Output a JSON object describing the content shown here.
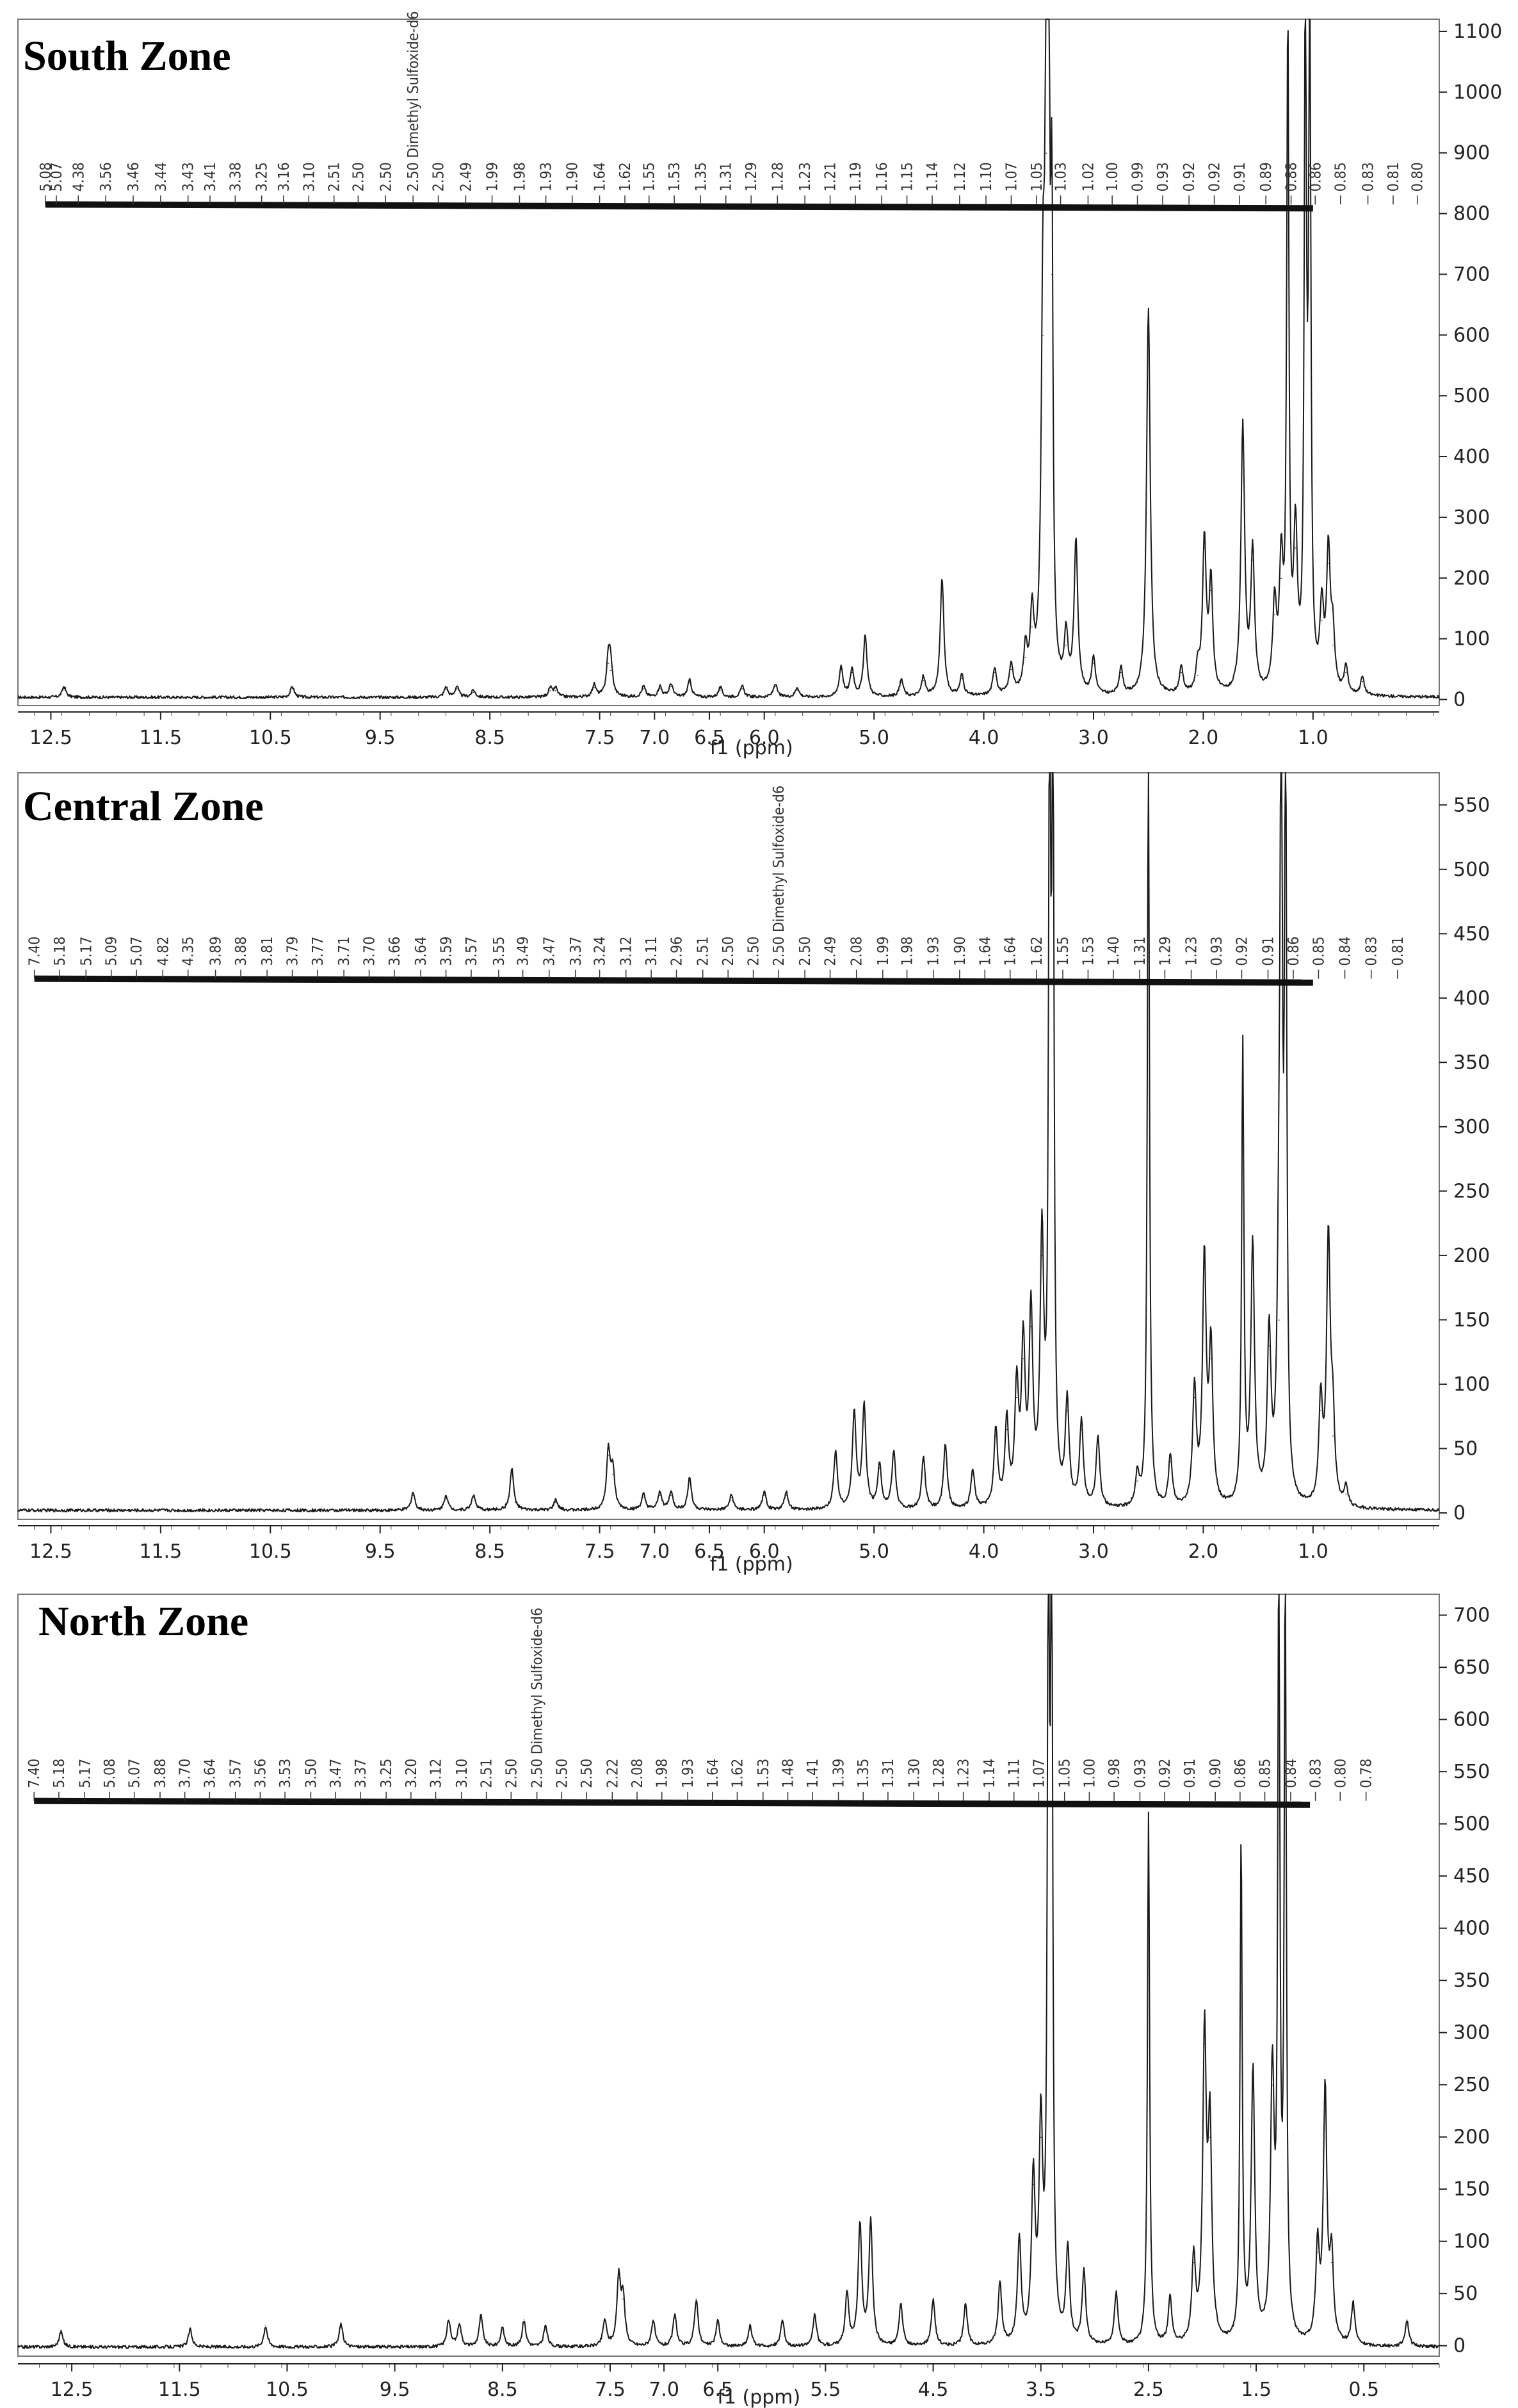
{
  "chart_data": [
    {
      "type": "line",
      "title": "South Zone",
      "xlabel": "f1 (ppm)",
      "ylabel": "",
      "x_axis_reversed": true,
      "xlim": [
        12.8,
        -0.15
      ],
      "ylim": [
        -10,
        1120
      ],
      "x_ticks": [
        "12.5",
        "11.5",
        "10.5",
        "9.5",
        "8.5",
        "7.5",
        "7.0",
        "6.5",
        "6.0",
        "5.0",
        "4.0",
        "3.0",
        "2.0",
        "1.0"
      ],
      "x_tick_values": [
        12.5,
        11.5,
        10.5,
        9.5,
        8.5,
        7.5,
        7.0,
        6.5,
        6.0,
        5.0,
        4.0,
        3.0,
        2.0,
        1.0
      ],
      "y_ticks": [
        0,
        100,
        200,
        300,
        400,
        500,
        600,
        700,
        800,
        900,
        1000,
        1100
      ],
      "integration_level": 815,
      "peak_labels": [
        "5.08",
        "5.07",
        "4.38",
        "3.56",
        "3.46",
        "3.44",
        "3.43",
        "3.41",
        "3.38",
        "3.25",
        "3.16",
        "3.10",
        "2.51",
        "2.50",
        "2.50",
        "2.50 Dimethyl Sulfoxide-d6",
        "2.50",
        "2.49",
        "1.99",
        "1.98",
        "1.93",
        "1.90",
        "1.64",
        "1.62",
        "1.55",
        "1.53",
        "1.35",
        "1.31",
        "1.29",
        "1.28",
        "1.23",
        "1.21",
        "1.19",
        "1.16",
        "1.15",
        "1.14",
        "1.12",
        "1.10",
        "1.07",
        "1.05",
        "1.03",
        "1.02",
        "1.00",
        "0.99",
        "0.93",
        "0.92",
        "0.92",
        "0.91",
        "0.89",
        "0.88",
        "0.86",
        "0.85",
        "0.83",
        "0.81",
        "0.80"
      ],
      "peak_label_positions_ppm": [
        12.55,
        12.45,
        12.25,
        12.0,
        11.75,
        11.5,
        11.25,
        11.05,
        10.82,
        10.58,
        10.38,
        10.15,
        9.92,
        9.7,
        9.45,
        9.2,
        8.97,
        8.72,
        8.48,
        8.23,
        7.99,
        7.75,
        7.5,
        7.27,
        7.05,
        6.82,
        6.58,
        6.35,
        6.12,
        5.88,
        5.63,
        5.4,
        5.17,
        4.93,
        4.7,
        4.47,
        4.22,
        3.98,
        3.75,
        3.52,
        3.3,
        3.05,
        2.83,
        2.6,
        2.37,
        2.13,
        1.9,
        1.67,
        1.43,
        1.2,
        0.98,
        0.75,
        0.5,
        0.27,
        0.05
      ],
      "series": [
        {
          "peaks": [
            {
              "x": 12.38,
              "y": 18
            },
            {
              "x": 10.3,
              "y": 18
            },
            {
              "x": 8.9,
              "y": 17
            },
            {
              "x": 8.8,
              "y": 18
            },
            {
              "x": 8.65,
              "y": 12
            },
            {
              "x": 7.95,
              "y": 15
            },
            {
              "x": 7.9,
              "y": 15
            },
            {
              "x": 7.55,
              "y": 20
            },
            {
              "x": 7.42,
              "y": 60
            },
            {
              "x": 7.4,
              "y": 48
            },
            {
              "x": 7.1,
              "y": 18
            },
            {
              "x": 6.95,
              "y": 18
            },
            {
              "x": 6.85,
              "y": 22
            },
            {
              "x": 6.68,
              "y": 28
            },
            {
              "x": 6.4,
              "y": 16
            },
            {
              "x": 6.2,
              "y": 18
            },
            {
              "x": 5.9,
              "y": 22
            },
            {
              "x": 5.7,
              "y": 16
            },
            {
              "x": 5.3,
              "y": 50
            },
            {
              "x": 5.2,
              "y": 45
            },
            {
              "x": 5.08,
              "y": 100
            },
            {
              "x": 4.75,
              "y": 28
            },
            {
              "x": 4.55,
              "y": 32
            },
            {
              "x": 4.38,
              "y": 195
            },
            {
              "x": 4.2,
              "y": 35
            },
            {
              "x": 3.9,
              "y": 45
            },
            {
              "x": 3.75,
              "y": 50
            },
            {
              "x": 3.62,
              "y": 70
            },
            {
              "x": 3.56,
              "y": 120
            },
            {
              "x": 3.46,
              "y": 600
            },
            {
              "x": 3.43,
              "y": 900
            },
            {
              "x": 3.41,
              "y": 1120
            },
            {
              "x": 3.38,
              "y": 700
            },
            {
              "x": 3.25,
              "y": 90
            },
            {
              "x": 3.16,
              "y": 250
            },
            {
              "x": 3.0,
              "y": 60
            },
            {
              "x": 2.75,
              "y": 45
            },
            {
              "x": 2.5,
              "y": 640
            },
            {
              "x": 2.2,
              "y": 45
            },
            {
              "x": 2.05,
              "y": 40
            },
            {
              "x": 1.99,
              "y": 250
            },
            {
              "x": 1.93,
              "y": 180
            },
            {
              "x": 1.64,
              "y": 440
            },
            {
              "x": 1.55,
              "y": 230
            },
            {
              "x": 1.35,
              "y": 140
            },
            {
              "x": 1.29,
              "y": 200
            },
            {
              "x": 1.23,
              "y": 1090
            },
            {
              "x": 1.16,
              "y": 250
            },
            {
              "x": 1.07,
              "y": 1120
            },
            {
              "x": 1.03,
              "y": 1120
            },
            {
              "x": 0.92,
              "y": 130
            },
            {
              "x": 0.86,
              "y": 225
            },
            {
              "x": 0.82,
              "y": 90
            },
            {
              "x": 0.7,
              "y": 45
            },
            {
              "x": 0.55,
              "y": 30
            }
          ]
        }
      ]
    },
    {
      "type": "line",
      "title": "Central Zone",
      "xlabel": "f1 (ppm)",
      "ylabel": "",
      "x_axis_reversed": true,
      "xlim": [
        12.8,
        -0.15
      ],
      "ylim": [
        -5,
        575
      ],
      "x_ticks": [
        "12.5",
        "11.5",
        "10.5",
        "9.5",
        "8.5",
        "7.5",
        "7.0",
        "6.5",
        "6.0",
        "5.0",
        "4.0",
        "3.0",
        "2.0",
        "1.0"
      ],
      "x_tick_values": [
        12.5,
        11.5,
        10.5,
        9.5,
        8.5,
        7.5,
        7.0,
        6.5,
        6.0,
        5.0,
        4.0,
        3.0,
        2.0,
        1.0
      ],
      "y_ticks": [
        0,
        50,
        100,
        150,
        200,
        250,
        300,
        350,
        400,
        450,
        500,
        550
      ],
      "integration_level": 415,
      "peak_labels": [
        "7.40",
        "5.18",
        "5.17",
        "5.09",
        "5.07",
        "4.82",
        "4.35",
        "3.89",
        "3.88",
        "3.81",
        "3.79",
        "3.77",
        "3.71",
        "3.70",
        "3.66",
        "3.64",
        "3.59",
        "3.57",
        "3.55",
        "3.49",
        "3.47",
        "3.37",
        "3.24",
        "3.12",
        "3.11",
        "2.96",
        "2.51",
        "2.50",
        "2.50",
        "2.50 Dimethyl Sulfoxide-d6",
        "2.50",
        "2.49",
        "2.08",
        "1.99",
        "1.98",
        "1.93",
        "1.90",
        "1.64",
        "1.64",
        "1.62",
        "1.55",
        "1.53",
        "1.40",
        "1.31",
        "1.29",
        "1.23",
        "0.93",
        "0.92",
        "0.91",
        "0.86",
        "0.85",
        "0.84",
        "0.83",
        "0.81"
      ],
      "peak_label_positions_ppm": [
        12.65,
        12.42,
        12.18,
        11.95,
        11.72,
        11.48,
        11.25,
        11.0,
        10.77,
        10.53,
        10.3,
        10.07,
        9.83,
        9.6,
        9.37,
        9.13,
        8.9,
        8.67,
        8.42,
        8.2,
        7.96,
        7.72,
        7.5,
        7.26,
        7.03,
        6.8,
        6.56,
        6.33,
        6.1,
        5.87,
        5.63,
        5.4,
        5.16,
        4.92,
        4.7,
        4.46,
        4.22,
        3.99,
        3.76,
        3.52,
        3.28,
        3.05,
        2.82,
        2.58,
        2.35,
        2.11,
        1.88,
        1.65,
        1.41,
        1.18,
        0.95,
        0.71,
        0.47,
        0.23
      ],
      "series": [
        {
          "peaks": [
            {
              "x": 9.2,
              "y": 14
            },
            {
              "x": 8.9,
              "y": 12
            },
            {
              "x": 8.65,
              "y": 12
            },
            {
              "x": 8.3,
              "y": 32
            },
            {
              "x": 7.9,
              "y": 8
            },
            {
              "x": 7.42,
              "y": 45
            },
            {
              "x": 7.38,
              "y": 30
            },
            {
              "x": 7.1,
              "y": 12
            },
            {
              "x": 6.95,
              "y": 14
            },
            {
              "x": 6.85,
              "y": 14
            },
            {
              "x": 6.68,
              "y": 25
            },
            {
              "x": 6.3,
              "y": 12
            },
            {
              "x": 6.0,
              "y": 14
            },
            {
              "x": 5.8,
              "y": 14
            },
            {
              "x": 5.35,
              "y": 45
            },
            {
              "x": 5.18,
              "y": 75
            },
            {
              "x": 5.09,
              "y": 80
            },
            {
              "x": 4.95,
              "y": 35
            },
            {
              "x": 4.82,
              "y": 45
            },
            {
              "x": 4.55,
              "y": 40
            },
            {
              "x": 4.35,
              "y": 50
            },
            {
              "x": 4.1,
              "y": 30
            },
            {
              "x": 3.89,
              "y": 60
            },
            {
              "x": 3.79,
              "y": 65
            },
            {
              "x": 3.7,
              "y": 90
            },
            {
              "x": 3.64,
              "y": 120
            },
            {
              "x": 3.57,
              "y": 145
            },
            {
              "x": 3.47,
              "y": 200
            },
            {
              "x": 3.4,
              "y": 575
            },
            {
              "x": 3.37,
              "y": 575
            },
            {
              "x": 3.24,
              "y": 80
            },
            {
              "x": 3.11,
              "y": 65
            },
            {
              "x": 2.96,
              "y": 55
            },
            {
              "x": 2.6,
              "y": 25
            },
            {
              "x": 2.5,
              "y": 575
            },
            {
              "x": 2.3,
              "y": 40
            },
            {
              "x": 2.08,
              "y": 90
            },
            {
              "x": 1.99,
              "y": 190
            },
            {
              "x": 1.93,
              "y": 120
            },
            {
              "x": 1.64,
              "y": 355
            },
            {
              "x": 1.55,
              "y": 200
            },
            {
              "x": 1.4,
              "y": 130
            },
            {
              "x": 1.31,
              "y": 150
            },
            {
              "x": 1.29,
              "y": 575
            },
            {
              "x": 1.25,
              "y": 575
            },
            {
              "x": 0.93,
              "y": 80
            },
            {
              "x": 0.86,
              "y": 205
            },
            {
              "x": 0.82,
              "y": 60
            },
            {
              "x": 0.7,
              "y": 15
            }
          ]
        }
      ]
    },
    {
      "type": "line",
      "title": "North Zone",
      "xlabel": "f1 (ppm)",
      "ylabel": "",
      "x_axis_reversed": true,
      "xlim": [
        13.0,
        -0.2
      ],
      "ylim": [
        -10,
        720
      ],
      "x_ticks": [
        "12.5",
        "11.5",
        "10.5",
        "9.5",
        "8.5",
        "7.5",
        "7.0",
        "6.5",
        "5.5",
        "4.5",
        "3.5",
        "2.5",
        "1.5",
        "0.5"
      ],
      "x_tick_values": [
        12.5,
        11.5,
        10.5,
        9.5,
        8.5,
        7.5,
        7.0,
        6.5,
        5.5,
        4.5,
        3.5,
        2.5,
        1.5,
        0.5
      ],
      "y_ticks": [
        0,
        50,
        100,
        150,
        200,
        250,
        300,
        350,
        400,
        450,
        500,
        550,
        600,
        650,
        700
      ],
      "integration_level": 522,
      "peak_labels": [
        "7.40",
        "5.18",
        "5.17",
        "5.08",
        "5.07",
        "3.88",
        "3.70",
        "3.64",
        "3.57",
        "3.56",
        "3.53",
        "3.50",
        "3.47",
        "3.37",
        "3.25",
        "3.20",
        "3.12",
        "3.10",
        "2.51",
        "2.50",
        "2.50 Dimethyl Sulfoxide-d6",
        "2.50",
        "2.50",
        "2.22",
        "2.08",
        "1.98",
        "1.93",
        "1.64",
        "1.62",
        "1.53",
        "1.48",
        "1.41",
        "1.39",
        "1.35",
        "1.31",
        "1.30",
        "1.28",
        "1.23",
        "1.14",
        "1.11",
        "1.07",
        "1.05",
        "1.00",
        "0.98",
        "0.93",
        "0.92",
        "0.91",
        "0.90",
        "0.86",
        "0.85",
        "0.84",
        "0.83",
        "0.80",
        "0.78"
      ],
      "peak_label_positions_ppm": [
        12.85,
        12.62,
        12.38,
        12.15,
        11.92,
        11.68,
        11.45,
        11.22,
        10.98,
        10.75,
        10.52,
        10.28,
        10.05,
        9.82,
        9.58,
        9.35,
        9.12,
        8.88,
        8.65,
        8.42,
        8.18,
        7.95,
        7.72,
        7.48,
        7.25,
        7.02,
        6.78,
        6.55,
        6.32,
        6.08,
        5.85,
        5.62,
        5.38,
        5.15,
        4.92,
        4.68,
        4.45,
        4.22,
        3.98,
        3.75,
        3.52,
        3.28,
        3.05,
        2.82,
        2.58,
        2.35,
        2.12,
        1.88,
        1.65,
        1.42,
        1.18,
        0.95,
        0.72,
        0.48
      ],
      "series": [
        {
          "peaks": [
            {
              "x": 12.6,
              "y": 15
            },
            {
              "x": 11.4,
              "y": 17
            },
            {
              "x": 10.7,
              "y": 20
            },
            {
              "x": 10.0,
              "y": 22
            },
            {
              "x": 9.0,
              "y": 25
            },
            {
              "x": 8.9,
              "y": 22
            },
            {
              "x": 8.7,
              "y": 30
            },
            {
              "x": 8.5,
              "y": 18
            },
            {
              "x": 8.3,
              "y": 25
            },
            {
              "x": 8.1,
              "y": 20
            },
            {
              "x": 7.55,
              "y": 25
            },
            {
              "x": 7.42,
              "y": 65
            },
            {
              "x": 7.38,
              "y": 45
            },
            {
              "x": 7.1,
              "y": 25
            },
            {
              "x": 6.9,
              "y": 30
            },
            {
              "x": 6.7,
              "y": 45
            },
            {
              "x": 6.5,
              "y": 25
            },
            {
              "x": 6.2,
              "y": 20
            },
            {
              "x": 5.9,
              "y": 25
            },
            {
              "x": 5.6,
              "y": 30
            },
            {
              "x": 5.3,
              "y": 50
            },
            {
              "x": 5.18,
              "y": 115
            },
            {
              "x": 5.08,
              "y": 120
            },
            {
              "x": 4.8,
              "y": 40
            },
            {
              "x": 4.5,
              "y": 45
            },
            {
              "x": 4.2,
              "y": 40
            },
            {
              "x": 3.88,
              "y": 60
            },
            {
              "x": 3.7,
              "y": 100
            },
            {
              "x": 3.57,
              "y": 155
            },
            {
              "x": 3.5,
              "y": 200
            },
            {
              "x": 3.43,
              "y": 720
            },
            {
              "x": 3.4,
              "y": 720
            },
            {
              "x": 3.25,
              "y": 90
            },
            {
              "x": 3.1,
              "y": 70
            },
            {
              "x": 2.8,
              "y": 50
            },
            {
              "x": 2.5,
              "y": 510
            },
            {
              "x": 2.3,
              "y": 45
            },
            {
              "x": 2.08,
              "y": 80
            },
            {
              "x": 1.98,
              "y": 290
            },
            {
              "x": 1.93,
              "y": 200
            },
            {
              "x": 1.64,
              "y": 480
            },
            {
              "x": 1.53,
              "y": 260
            },
            {
              "x": 1.35,
              "y": 250
            },
            {
              "x": 1.29,
              "y": 720
            },
            {
              "x": 1.23,
              "y": 720
            },
            {
              "x": 0.93,
              "y": 90
            },
            {
              "x": 0.86,
              "y": 240
            },
            {
              "x": 0.8,
              "y": 80
            },
            {
              "x": 0.6,
              "y": 40
            },
            {
              "x": 0.1,
              "y": 25
            }
          ]
        }
      ]
    }
  ]
}
